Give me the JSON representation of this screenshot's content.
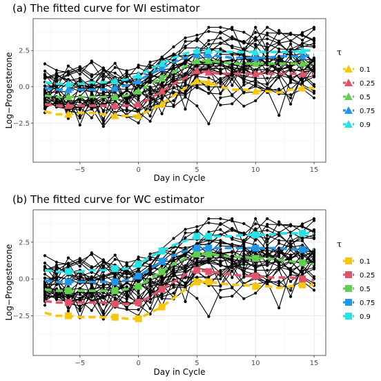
{
  "chart_data": [
    {
      "type": "line",
      "title": "(a) The fitted curve for WI estimator",
      "xlabel": "Day in Cycle",
      "ylabel": "Log−Progesterone",
      "xlim": [
        -9,
        16
      ],
      "ylim": [
        -5.2,
        4.7
      ],
      "x_ticks": [
        -5,
        0,
        5,
        10,
        15
      ],
      "y_ticks": [
        -2.5,
        0.0,
        2.5
      ],
      "y_tick_labels": [
        "−2.5",
        "0.0",
        "2.5"
      ],
      "grid": true,
      "legend_title": "τ",
      "legend_position": "right",
      "marker": "triangle",
      "x": [
        -8,
        -7,
        -6,
        -5,
        -4,
        -3,
        -2,
        -1,
        0,
        1,
        2,
        3,
        4,
        5,
        6,
        7,
        8,
        9,
        10,
        11,
        12,
        13,
        14,
        15
      ],
      "series": [
        {
          "name": "0.1",
          "color": "#F5C710",
          "values": [
            -1.7,
            -1.9,
            -1.9,
            -1.8,
            -1.8,
            -1.9,
            -2.0,
            -2.0,
            -2.0,
            -1.6,
            -1.2,
            -0.6,
            -0.1,
            0.4,
            0.3,
            0.0,
            -0.2,
            -0.2,
            -0.3,
            -0.3,
            -0.4,
            -0.2,
            -0.1,
            -0.1
          ]
        },
        {
          "name": "0.25",
          "color": "#DF536B",
          "values": [
            -1.2,
            -1.3,
            -1.3,
            -1.3,
            -1.3,
            -1.3,
            -1.3,
            -1.3,
            -1.2,
            -0.8,
            -0.3,
            0.2,
            0.6,
            1.1,
            1.0,
            0.9,
            0.9,
            0.9,
            0.9,
            0.9,
            0.9,
            0.9,
            0.9,
            0.9
          ]
        },
        {
          "name": "0.5",
          "color": "#61D04F",
          "values": [
            -0.6,
            -0.7,
            -0.7,
            -0.7,
            -0.7,
            -0.7,
            -0.7,
            -0.6,
            -0.3,
            0.2,
            0.6,
            1.0,
            1.4,
            1.8,
            1.8,
            1.7,
            1.6,
            1.6,
            1.6,
            1.6,
            1.6,
            1.6,
            1.6,
            1.6
          ]
        },
        {
          "name": "0.75",
          "color": "#2297E6",
          "values": [
            -0.1,
            -0.2,
            -0.2,
            -0.2,
            -0.2,
            -0.2,
            -0.1,
            0.1,
            0.4,
            0.9,
            1.3,
            1.7,
            2.0,
            2.2,
            2.2,
            2.1,
            2.0,
            2.0,
            2.0,
            2.0,
            2.1,
            2.1,
            2.1,
            2.2
          ]
        },
        {
          "name": "0.9",
          "color": "#28E2E5",
          "values": [
            0.3,
            0.2,
            0.2,
            0.2,
            0.3,
            0.3,
            0.4,
            0.5,
            0.8,
            1.2,
            1.6,
            2.0,
            2.3,
            2.5,
            2.5,
            2.4,
            2.4,
            2.4,
            2.4,
            2.4,
            2.4,
            2.4,
            2.5,
            2.5
          ]
        }
      ]
    },
    {
      "type": "line",
      "title": "(b) The fitted curve for WC estimator",
      "xlabel": "Day in Cycle",
      "ylabel": "Log−Progesterone",
      "xlim": [
        -9,
        16
      ],
      "ylim": [
        -5.2,
        4.7
      ],
      "x_ticks": [
        -5,
        0,
        5,
        10,
        15
      ],
      "y_ticks": [
        -2.5,
        0.0,
        2.5
      ],
      "y_tick_labels": [
        "−2.5",
        "0.0",
        "2.5"
      ],
      "grid": true,
      "legend_title": "τ",
      "legend_position": "right",
      "marker": "square",
      "x": [
        -8,
        -7,
        -6,
        -5,
        -4,
        -3,
        -2,
        -1,
        0,
        1,
        2,
        3,
        4,
        5,
        6,
        7,
        8,
        9,
        10,
        11,
        12,
        13,
        14,
        15
      ],
      "series": [
        {
          "name": "0.1",
          "color": "#F5C710",
          "values": [
            -2.3,
            -2.5,
            -2.5,
            -2.6,
            -2.6,
            -2.6,
            -2.6,
            -2.7,
            -2.7,
            -2.3,
            -1.9,
            -1.3,
            -0.7,
            -0.2,
            -0.2,
            -0.3,
            -0.4,
            -0.4,
            -0.5,
            -0.5,
            -0.6,
            -0.5,
            -0.4,
            -0.4
          ]
        },
        {
          "name": "0.25",
          "color": "#DF536B",
          "values": [
            -1.5,
            -1.6,
            -1.6,
            -1.6,
            -1.6,
            -1.6,
            -1.7,
            -1.7,
            -1.6,
            -1.2,
            -0.7,
            -0.2,
            0.3,
            0.6,
            0.5,
            0.4,
            0.3,
            0.2,
            0.2,
            0.1,
            0.1,
            0.1,
            0.0,
            -0.1
          ]
        },
        {
          "name": "0.5",
          "color": "#61D04F",
          "values": [
            -0.7,
            -0.8,
            -0.8,
            -0.8,
            -0.8,
            -0.8,
            -0.8,
            -0.7,
            -0.5,
            0.0,
            0.5,
            1.0,
            1.4,
            1.7,
            1.7,
            1.6,
            1.5,
            1.5,
            1.4,
            1.4,
            1.3,
            1.2,
            1.1,
            1.0
          ]
        },
        {
          "name": "0.75",
          "color": "#2297E6",
          "values": [
            -0.1,
            -0.2,
            -0.2,
            -0.2,
            -0.2,
            -0.2,
            -0.2,
            -0.1,
            0.2,
            0.7,
            1.2,
            1.6,
            1.9,
            2.1,
            2.1,
            2.1,
            2.1,
            2.1,
            2.1,
            2.1,
            2.1,
            2.0,
            2.0,
            2.0
          ]
        },
        {
          "name": "0.9",
          "color": "#28E2E5",
          "values": [
            0.6,
            0.5,
            0.5,
            0.5,
            0.6,
            0.6,
            0.7,
            0.7,
            1.0,
            1.5,
            1.9,
            2.3,
            2.6,
            2.9,
            2.9,
            2.9,
            2.9,
            3.0,
            3.0,
            3.0,
            3.1,
            3.1,
            3.1,
            3.1
          ]
        }
      ]
    }
  ]
}
